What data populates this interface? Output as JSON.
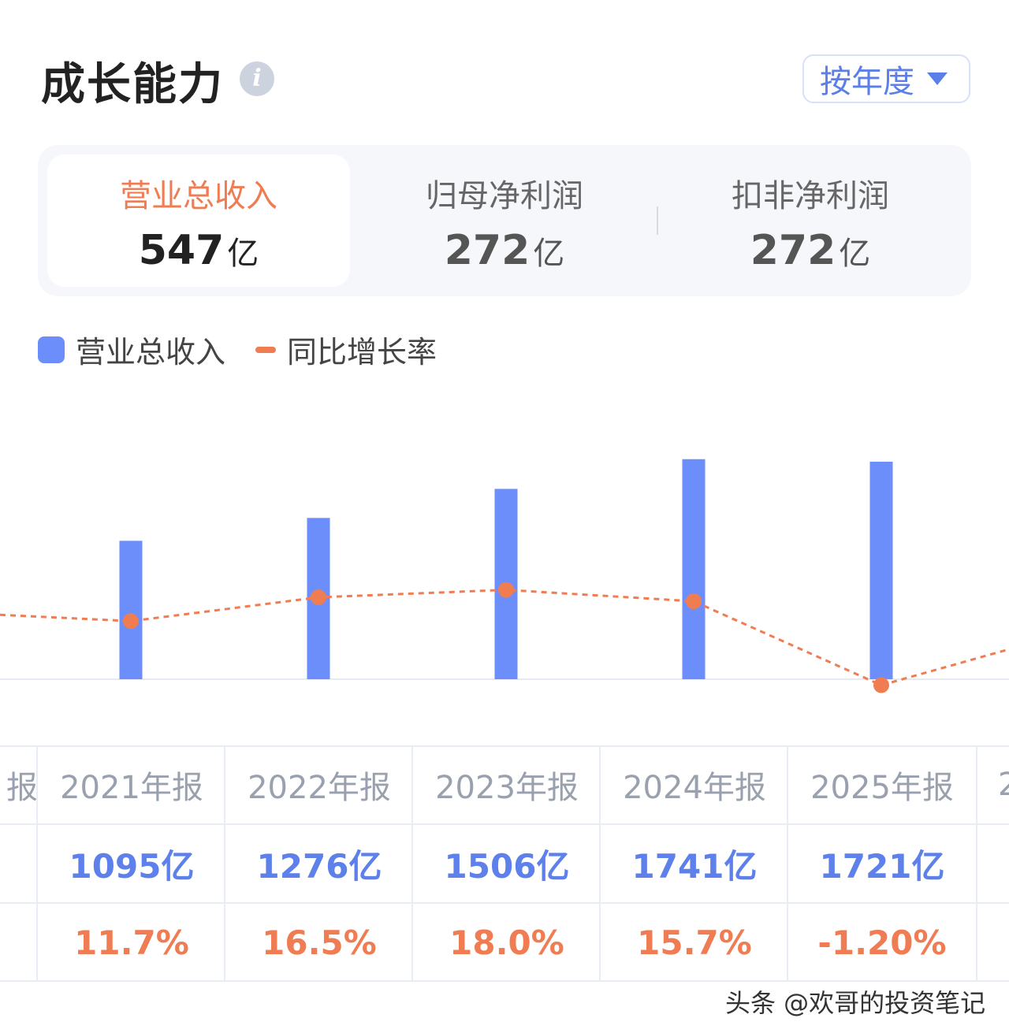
{
  "header": {
    "title": "成长能力",
    "info_icon": "i",
    "period_select": {
      "value": "按年度"
    }
  },
  "metrics": [
    {
      "label": "营业总收入",
      "value": "547",
      "unit": "亿",
      "active": true
    },
    {
      "label": "归母净利润",
      "value": "272",
      "unit": "亿",
      "active": false
    },
    {
      "label": "扣非净利润",
      "value": "272",
      "unit": "亿",
      "active": false
    }
  ],
  "legend": {
    "bar_label": "营业总收入",
    "line_label": "同比增长率"
  },
  "colors": {
    "bar": "#6b8efb",
    "line": "#f07d52",
    "accent_text": "#ef7c52",
    "blue_text": "#5d80ea"
  },
  "chart_data": {
    "type": "bar",
    "categories": [
      "2021年报",
      "2022年报",
      "2023年报",
      "2024年报",
      "2025年报"
    ],
    "series": [
      {
        "name": "营业总收入",
        "type": "bar",
        "values": [
          1095,
          1276,
          1506,
          1741,
          1721
        ]
      },
      {
        "name": "同比增长率",
        "type": "line",
        "values": [
          11.7,
          16.5,
          18.0,
          15.7,
          -1.2
        ]
      }
    ],
    "grid": false,
    "legend_position": "top-left"
  },
  "table": {
    "partial_left": {
      "year": "报"
    },
    "partial_right": {
      "year": "2"
    },
    "columns": [
      {
        "year": "2021年报",
        "revenue": "1095亿",
        "growth": "11.7%"
      },
      {
        "year": "2022年报",
        "revenue": "1276亿",
        "growth": "16.5%"
      },
      {
        "year": "2023年报",
        "revenue": "1506亿",
        "growth": "18.0%"
      },
      {
        "year": "2024年报",
        "revenue": "1741亿",
        "growth": "15.7%"
      },
      {
        "year": "2025年报",
        "revenue": "1721亿",
        "growth": "-1.20%"
      }
    ]
  },
  "watermark": "头条 @欢哥的投资笔记"
}
